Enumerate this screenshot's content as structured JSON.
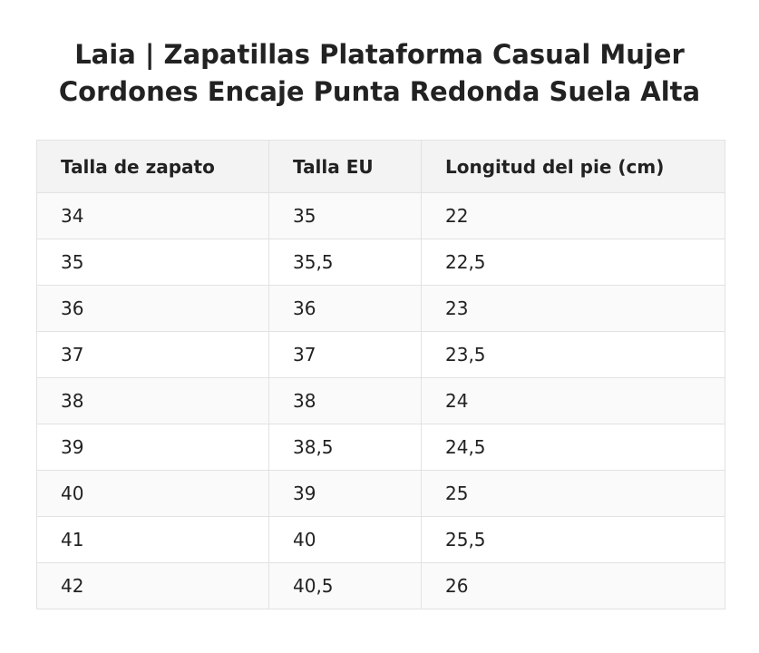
{
  "title": {
    "line1": "Laia | Zapatillas Plataforma Casual Mujer",
    "line2": "Cordones Encaje Punta Redonda Suela Alta"
  },
  "table": {
    "headers": [
      "Talla de zapato",
      "Talla EU",
      "Longitud del pie (cm)"
    ],
    "rows": [
      [
        "34",
        "35",
        "22"
      ],
      [
        "35",
        "35,5",
        "22,5"
      ],
      [
        "36",
        "36",
        "23"
      ],
      [
        "37",
        "37",
        "23,5"
      ],
      [
        "38",
        "38",
        "24"
      ],
      [
        "39",
        "38,5",
        "24,5"
      ],
      [
        "40",
        "39",
        "25"
      ],
      [
        "41",
        "40",
        "25,5"
      ],
      [
        "42",
        "40,5",
        "26"
      ]
    ]
  }
}
